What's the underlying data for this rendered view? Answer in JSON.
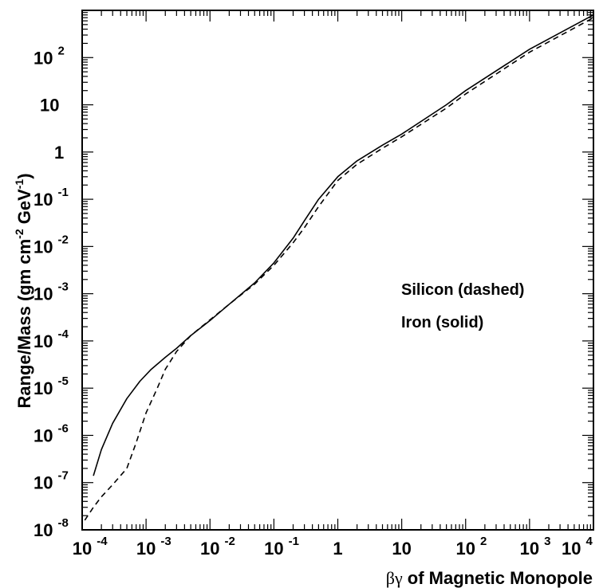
{
  "chart_data": {
    "type": "line",
    "xlabel": {
      "prefix": "βγ",
      "rest": " of Magnetic Monopole"
    },
    "ylabel": {
      "prefix": "Range/Mass (gm cm",
      "sup1": "-2",
      "mid": " GeV",
      "sup2": "-1",
      "suffix": ")"
    },
    "xscale": "log",
    "yscale": "log",
    "xlim": [
      0.0001,
      10000
    ],
    "ylim": [
      1e-08,
      1000
    ],
    "grid": false,
    "x_ticks": [
      {
        "exp": -4,
        "base": "10",
        "sup": "-4"
      },
      {
        "exp": -3,
        "base": "10",
        "sup": "-3"
      },
      {
        "exp": -2,
        "base": "10",
        "sup": "-2"
      },
      {
        "exp": -1,
        "base": "10",
        "sup": "-1"
      },
      {
        "exp": 0,
        "base": "1",
        "sup": ""
      },
      {
        "exp": 1,
        "base": "10",
        "sup": ""
      },
      {
        "exp": 2,
        "base": "10",
        "sup": "2"
      },
      {
        "exp": 3,
        "base": "10",
        "sup": "3"
      },
      {
        "exp": 4,
        "base": "10",
        "sup": "4"
      }
    ],
    "y_ticks": [
      {
        "exp": -8,
        "base": "10",
        "sup": "-8"
      },
      {
        "exp": -7,
        "base": "10",
        "sup": "-7"
      },
      {
        "exp": -6,
        "base": "10",
        "sup": "-6"
      },
      {
        "exp": -5,
        "base": "10",
        "sup": "-5"
      },
      {
        "exp": -4,
        "base": "10",
        "sup": "-4"
      },
      {
        "exp": -3,
        "base": "10",
        "sup": "-3"
      },
      {
        "exp": -2,
        "base": "10",
        "sup": "-2"
      },
      {
        "exp": -1,
        "base": "10",
        "sup": "-1"
      },
      {
        "exp": 0,
        "base": "1",
        "sup": ""
      },
      {
        "exp": 1,
        "base": "10",
        "sup": ""
      },
      {
        "exp": 2,
        "base": "10",
        "sup": "2"
      }
    ],
    "annotations": [
      "Silicon (dashed)",
      "Iron (solid)"
    ],
    "series": [
      {
        "name": "Iron",
        "style": "solid",
        "color": "#000000",
        "x": [
          0.00015,
          0.0002,
          0.0003,
          0.0005,
          0.0008,
          0.0012,
          0.002,
          0.003,
          0.005,
          0.01,
          0.02,
          0.05,
          0.1,
          0.2,
          0.3,
          0.5,
          1,
          2,
          5,
          10,
          50,
          100,
          1000,
          10000
        ],
        "y": [
          1.4e-07,
          5e-07,
          1.8e-06,
          6e-06,
          1.4e-05,
          2.5e-05,
          4.5e-05,
          7e-05,
          0.00013,
          0.00027,
          0.0006,
          0.0017,
          0.0045,
          0.015,
          0.035,
          0.1,
          0.3,
          0.65,
          1.4,
          2.4,
          10,
          20,
          150,
          800
        ]
      },
      {
        "name": "Silicon",
        "style": "dashed",
        "color": "#000000",
        "x": [
          0.00011,
          0.00015,
          0.0002,
          0.0003,
          0.0005,
          0.0007,
          0.001,
          0.0015,
          0.002,
          0.003,
          0.005,
          0.01,
          0.02,
          0.05,
          0.1,
          0.2,
          0.3,
          0.5,
          1,
          2,
          5,
          10,
          50,
          100,
          1000,
          10000
        ],
        "y": [
          1.6e-08,
          3e-08,
          5e-08,
          9e-08,
          2e-07,
          7e-07,
          3e-06,
          1e-05,
          2.5e-05,
          6e-05,
          0.00013,
          0.00028,
          0.0006,
          0.0016,
          0.004,
          0.012,
          0.025,
          0.07,
          0.25,
          0.55,
          1.2,
          2.1,
          8.5,
          17,
          130,
          700
        ]
      }
    ]
  }
}
